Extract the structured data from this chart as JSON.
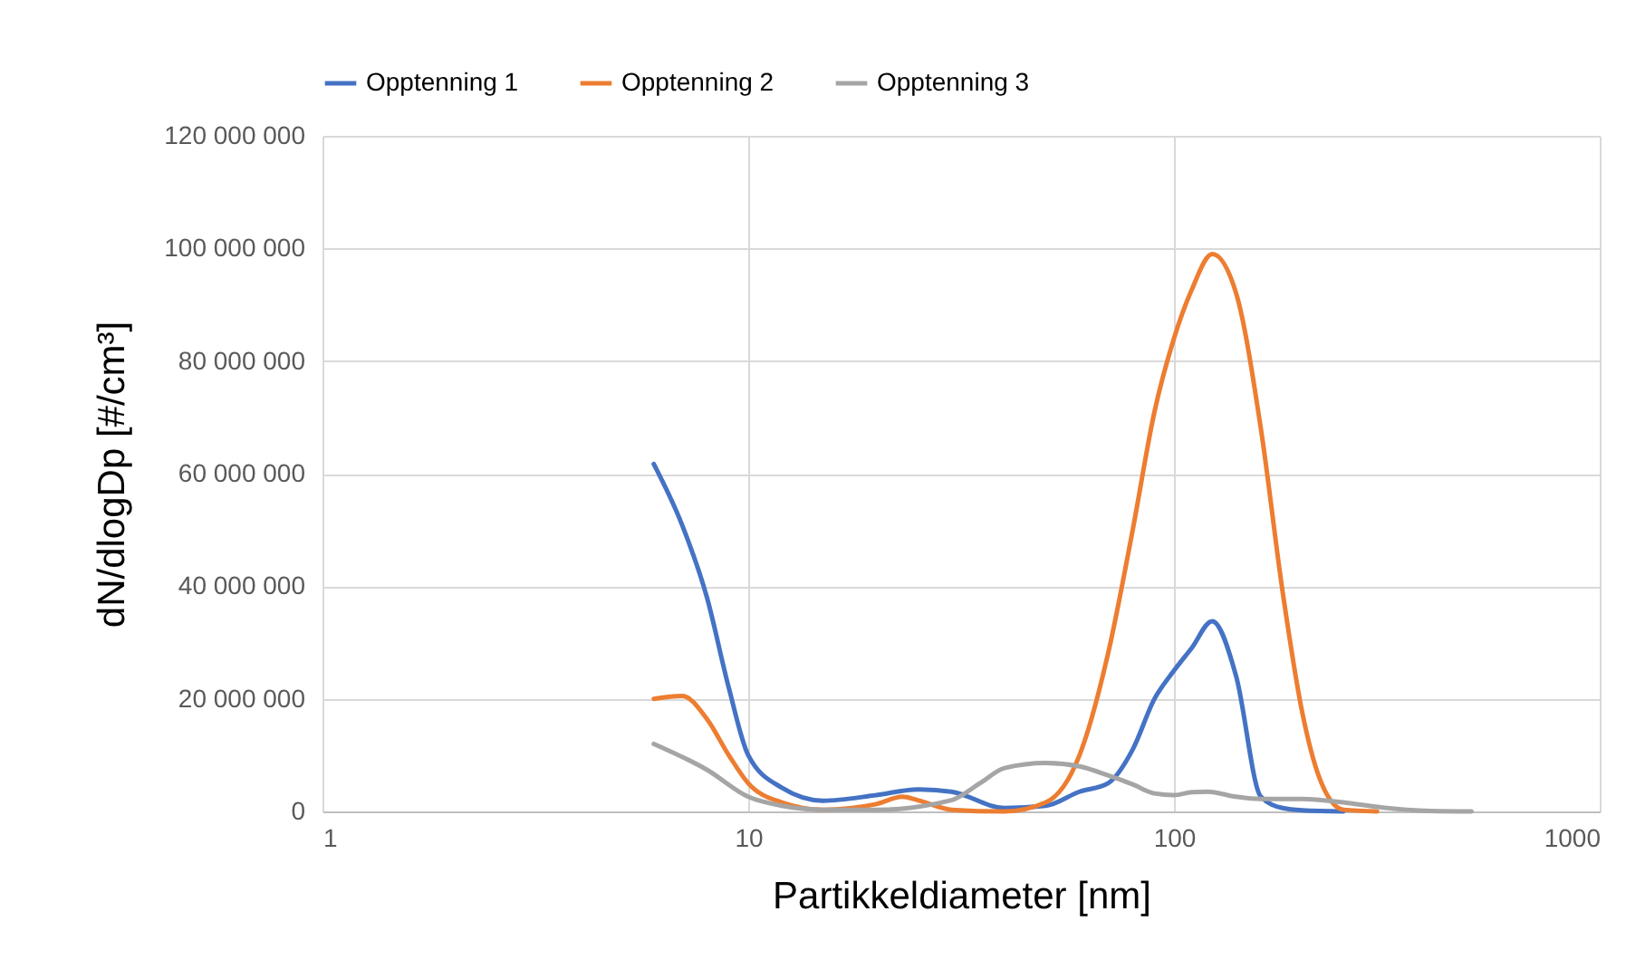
{
  "chart_data": {
    "type": "line",
    "xlabel": "Partikkeldiameter [nm]",
    "ylabel": "dN/dlogDp [#/cm³]",
    "log": "x",
    "grid": true,
    "legend": "top",
    "xlim": [
      1,
      1000
    ],
    "xticks": [
      1,
      10,
      100,
      1000
    ],
    "ylim": [
      0,
      120000000
    ],
    "yticks": [
      {
        "value": 0,
        "label": "0"
      },
      {
        "value": 20000000,
        "label": "20 000 000"
      },
      {
        "value": 40000000,
        "label": "40 000 000"
      },
      {
        "value": 60000000,
        "label": "60 000 000"
      },
      {
        "value": 80000000,
        "label": "80 000 000"
      },
      {
        "value": 100000000,
        "label": "100 000 000"
      },
      {
        "value": 120000000,
        "label": "120 000 000"
      }
    ],
    "series": [
      {
        "name": "Opptenning 1",
        "color": "#4472c4",
        "x": [
          6,
          7,
          8,
          9,
          10,
          12,
          15,
          20,
          25,
          30,
          40,
          50,
          60,
          70,
          80,
          90,
          100,
          110,
          123,
          140,
          160,
          180,
          200,
          250
        ],
        "values": [
          61700000,
          50800000,
          38000000,
          22000000,
          10000000,
          4200000,
          1900000,
          2900000,
          3900000,
          3500000,
          600000,
          1000000,
          3500000,
          5000000,
          11000000,
          20000000,
          25000000,
          29000000,
          33800000,
          24000000,
          2600000,
          600000,
          200000,
          0
        ]
      },
      {
        "name": "Opptenning 2",
        "color": "#ed7d31",
        "x": [
          6,
          7,
          8,
          9,
          10,
          12,
          15,
          20,
          23,
          25,
          30,
          40,
          50,
          60,
          70,
          80,
          90,
          100,
          110,
          123,
          140,
          160,
          180,
          200,
          220,
          250,
          300
        ],
        "values": [
          20000000,
          20500000,
          16400000,
          10000000,
          5000000,
          1600000,
          300000,
          1300000,
          2600000,
          2000000,
          300000,
          0,
          1600000,
          10000000,
          28000000,
          50000000,
          71000000,
          84000000,
          92600000,
          99000000,
          92000000,
          68000000,
          39000000,
          17700000,
          5800000,
          300000,
          0
        ]
      },
      {
        "name": "Opptenning 3",
        "color": "#a5a5a5",
        "x": [
          6,
          8,
          10,
          12,
          15,
          20,
          30,
          35,
          40,
          50,
          60,
          70,
          80,
          90,
          100,
          110,
          120,
          140,
          160,
          200,
          250,
          300,
          400,
          500
        ],
        "values": [
          12000000,
          7400000,
          2600000,
          1000000,
          300000,
          300000,
          2000000,
          5000000,
          7700000,
          8600000,
          8000000,
          6400000,
          4800000,
          3200000,
          2900000,
          3400000,
          3500000,
          2600000,
          2200000,
          2200000,
          1600000,
          800000,
          100000,
          0
        ]
      }
    ]
  }
}
